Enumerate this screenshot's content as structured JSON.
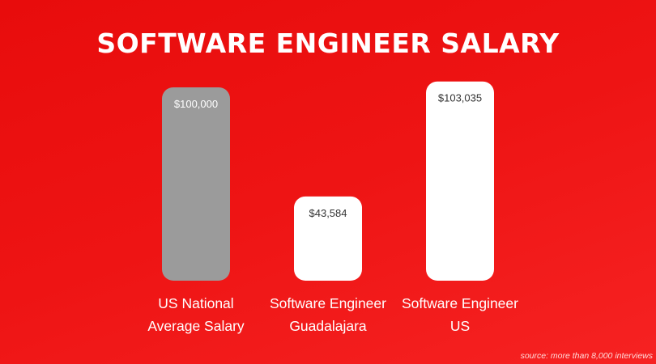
{
  "chart_data": {
    "type": "bar",
    "title": "SOFTWARE ENGINEER SALARY",
    "categories": [
      [
        "US National",
        "Average Salary"
      ],
      [
        "Software Engineer",
        "Guadalajara"
      ],
      [
        "Software Engineer",
        "US"
      ]
    ],
    "values": [
      100000,
      43584,
      103035
    ],
    "value_labels": [
      "$100,000",
      "$43,584",
      "$103,035"
    ],
    "bar_colors": [
      "#9b9b9b",
      "#ffffff",
      "#ffffff"
    ],
    "label_colors": [
      "#ffffff",
      "#333333",
      "#333333"
    ],
    "xlabel": "",
    "ylabel": "",
    "ylim": [
      0,
      105000
    ],
    "grid": false,
    "source": "source: more than 8,000 interviews"
  }
}
